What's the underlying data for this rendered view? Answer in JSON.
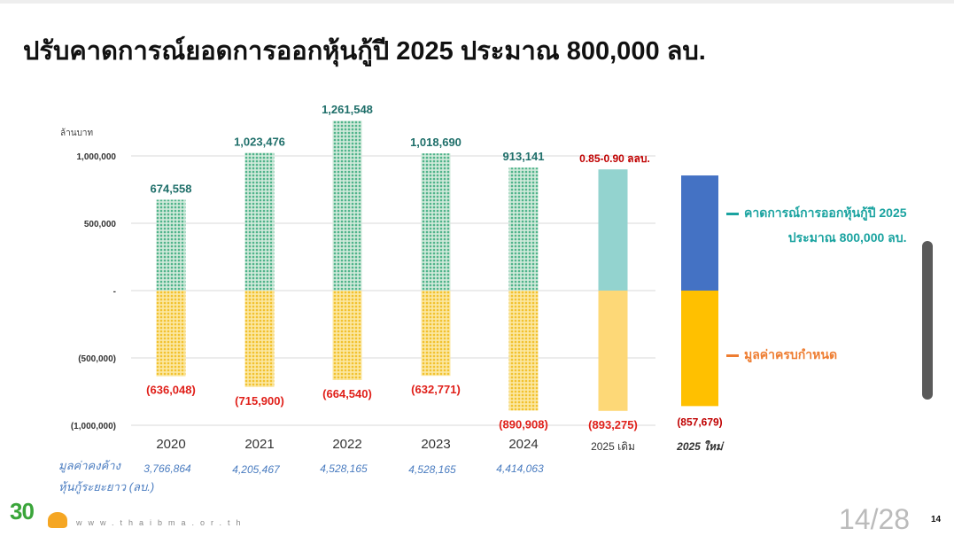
{
  "title": "ปรับคาดการณ์ยอดการออกหุ้นกู้ปี 2025 ประมาณ 800,000 ลบ.",
  "chart_data": {
    "type": "bar",
    "unit_label": "ล้านบาท",
    "ylim": [
      -1000000,
      1300000
    ],
    "yticks": [
      {
        "v": 1000000,
        "label": "1,000,000"
      },
      {
        "v": 500000,
        "label": "500,000"
      },
      {
        "v": 0,
        "label": "-"
      },
      {
        "v": -500000,
        "label": "(500,000)"
      },
      {
        "v": -1000000,
        "label": "(1,000,000)"
      }
    ],
    "categories": [
      "2020",
      "2021",
      "2022",
      "2023",
      "2024",
      "2025 เดิม",
      "2025 ใหม่"
    ],
    "series": [
      {
        "name": "issuance",
        "values": [
          674558,
          1023476,
          1261548,
          1018690,
          913141,
          900000,
          855000
        ],
        "labels": [
          "674,558",
          "1,023,476",
          "1,261,548",
          "1,018,690",
          "913,141",
          "0.85-0.90 ลลบ.",
          ""
        ]
      },
      {
        "name": "maturity",
        "values": [
          -636048,
          -715900,
          -664540,
          -632771,
          -890908,
          -893275,
          -857679
        ],
        "labels": [
          "(636,048)",
          "(715,900)",
          "(664,540)",
          "(632,771)",
          "(890,908)",
          "(893,275)",
          "(857,679)"
        ]
      }
    ],
    "outstanding": {
      "label_line1": "มูลค่าคงค้าง",
      "label_line2": "หุ้นกู้ระยะยาว (ลบ.)",
      "values": [
        "3,766,864",
        "4,205,467",
        "4,528,165",
        "4,528,165",
        "4,414,063"
      ]
    },
    "legend": {
      "forecast_line1": "คาดการณ์การออกหุ้นกู้ปี 2025",
      "forecast_line2": "ประมาณ 800,000 ลบ.",
      "maturity": "มูลค่าครบกำหนด"
    },
    "colors": {
      "issue": "#4fb38a",
      "maturity": "#f2c12e",
      "issue_old": "#93d3cf",
      "maturity_old": "#fdd877",
      "issue_new": "#4472c4",
      "maturity_new": "#ffc000",
      "label_pos": "#1f6f6a",
      "label_neg": "#e0201a",
      "legend_teal": "#1aa3a0",
      "legend_orange": "#ee7d31"
    }
  },
  "footer": {
    "website": "www.thaibma.or.th",
    "logo_text": "30",
    "page_indicator": "14/28",
    "page_number": "14"
  }
}
